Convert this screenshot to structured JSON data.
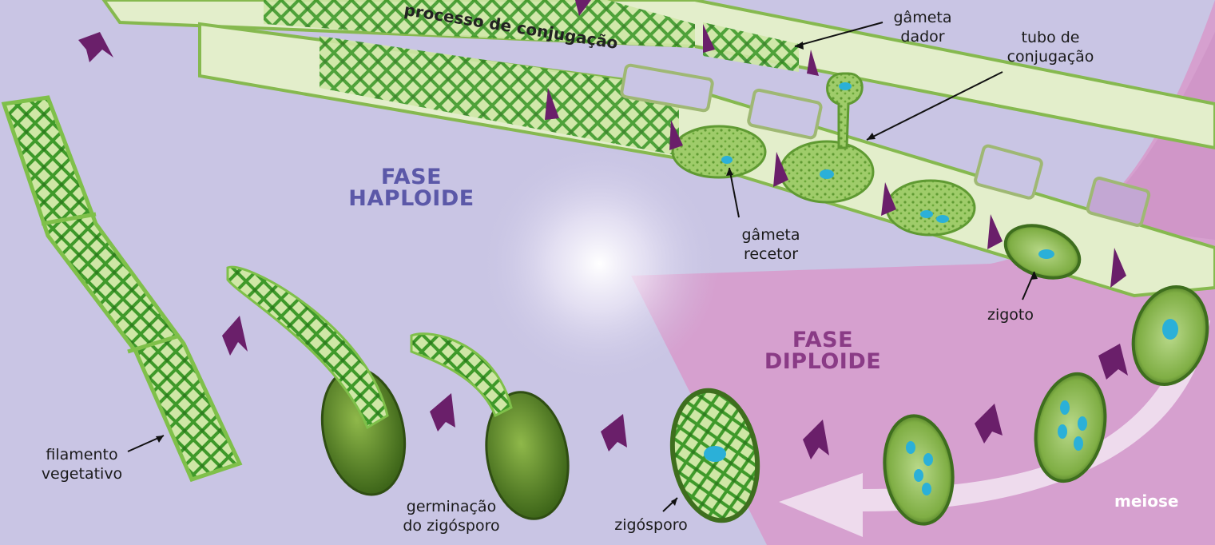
{
  "phases": {
    "haploid": [
      "FASE",
      "HAPLOIDE"
    ],
    "diploid": [
      "FASE",
      "DIPLOIDE"
    ]
  },
  "labels": {
    "conjugation_process": "processo de conjugação",
    "donor_gamete": [
      "gâmeta",
      "dador"
    ],
    "conjugation_tube": [
      "tubo de",
      "conjugação"
    ],
    "recipient_gamete": [
      "gâmeta",
      "recetor"
    ],
    "zygote": "zigoto",
    "meiosis": "meiose",
    "zygospore": "zigósporo",
    "zygospore_germination": [
      "germinação",
      "do zigósporo"
    ],
    "vegetative_filament": [
      "filamento",
      "vegetativo"
    ]
  },
  "colors": {
    "background_haploid": "#c9c5e4",
    "background_diploid": "#d6a0cf",
    "arrow": "#6a1f6a",
    "cell_green": "#7fc04a",
    "chloroplast_green": "#3f9a2a",
    "nucleus_blue": "#2bb0d8",
    "zygospore_dark": "#3e6e1e"
  }
}
